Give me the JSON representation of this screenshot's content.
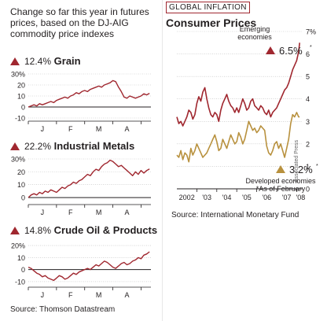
{
  "intro": "Change so far this year in futures prices, based on the DJ-AIG commodity price indexes",
  "left_source": "Source: Thomson Datastream",
  "colors": {
    "accent": "#a0272f",
    "line": "#a0272f",
    "gold": "#b8913e",
    "axis": "#231f20"
  },
  "commodities": [
    {
      "pct": "12.4%",
      "name": "Grain"
    },
    {
      "pct": "22.2%",
      "name": "Industrial Metals"
    },
    {
      "pct": "14.8%",
      "name": "Crude Oil & Products"
    }
  ],
  "right": {
    "tag": "GLOBAL INFLATION",
    "title": "Consumer Prices",
    "source": "Source: International Monetary Fund",
    "emerging_label_1": "Emerging",
    "emerging_label_2": "economies",
    "emerging_value": "6.5%",
    "developed_label": "Developed economies",
    "developed_value": "3.2%",
    "footnote": "*As of February",
    "credit": "Associated Press",
    "star": "*"
  },
  "chart_data": [
    {
      "type": "line",
      "title": "Grain",
      "ytick_labels": [
        "30%",
        "20",
        "10",
        "0",
        "-10"
      ],
      "yticks": [
        30,
        20,
        10,
        0,
        -10
      ],
      "ylim": [
        -10,
        30
      ],
      "xtick_labels": [
        "J",
        "F",
        "M",
        "A"
      ],
      "xlim": [
        0,
        4.35
      ],
      "x": [
        0,
        0.1,
        0.2,
        0.3,
        0.4,
        0.5,
        0.6,
        0.7,
        0.8,
        0.9,
        1.0,
        1.1,
        1.2,
        1.3,
        1.4,
        1.5,
        1.6,
        1.7,
        1.8,
        1.9,
        2.0,
        2.1,
        2.2,
        2.3,
        2.4,
        2.5,
        2.6,
        2.7,
        2.8,
        2.9,
        3.0,
        3.1,
        3.2,
        3.3,
        3.4,
        3.5,
        3.6,
        3.7,
        3.8,
        3.9,
        4.0,
        4.1,
        4.2,
        4.3
      ],
      "series": [
        {
          "values": [
            0,
            1,
            2,
            1,
            3,
            2,
            3,
            4,
            5,
            4,
            6,
            7,
            8,
            9,
            8,
            10,
            11,
            13,
            12,
            14,
            15,
            14,
            16,
            17,
            18,
            19,
            18,
            20,
            21,
            22,
            24,
            23,
            18,
            14,
            9,
            8,
            10,
            9,
            8,
            9,
            10,
            12,
            11,
            12.4
          ]
        }
      ]
    },
    {
      "type": "line",
      "title": "Industrial Metals",
      "ytick_labels": [
        "30%",
        "20",
        "10",
        "0"
      ],
      "yticks": [
        30,
        20,
        10,
        0
      ],
      "ylim": [
        -3,
        30
      ],
      "xtick_labels": [
        "J",
        "F",
        "M",
        "A"
      ],
      "xlim": [
        0,
        4.35
      ],
      "x": [
        0,
        0.1,
        0.2,
        0.3,
        0.4,
        0.5,
        0.6,
        0.7,
        0.8,
        0.9,
        1.0,
        1.1,
        1.2,
        1.3,
        1.4,
        1.5,
        1.6,
        1.7,
        1.8,
        1.9,
        2.0,
        2.1,
        2.2,
        2.3,
        2.4,
        2.5,
        2.6,
        2.7,
        2.8,
        2.9,
        3.0,
        3.1,
        3.2,
        3.3,
        3.4,
        3.5,
        3.6,
        3.7,
        3.8,
        3.9,
        4.0,
        4.1,
        4.2,
        4.3
      ],
      "series": [
        {
          "values": [
            0,
            2,
            3,
            2,
            4,
            3,
            5,
            4,
            6,
            5,
            4,
            6,
            8,
            7,
            9,
            10,
            12,
            11,
            13,
            14,
            16,
            18,
            17,
            20,
            22,
            21,
            24,
            26,
            27,
            29,
            28,
            26,
            24,
            25,
            23,
            21,
            19,
            17,
            20,
            18,
            21,
            19,
            21,
            22.2
          ]
        }
      ]
    },
    {
      "type": "line",
      "title": "Crude Oil & Products",
      "ytick_labels": [
        "20%",
        "10",
        "0",
        "-10"
      ],
      "yticks": [
        20,
        10,
        0,
        -10
      ],
      "ylim": [
        -12,
        22
      ],
      "xtick_labels": [
        "J",
        "F",
        "M",
        "A"
      ],
      "xlim": [
        0,
        4.35
      ],
      "x": [
        0,
        0.1,
        0.2,
        0.3,
        0.4,
        0.5,
        0.6,
        0.7,
        0.8,
        0.9,
        1.0,
        1.1,
        1.2,
        1.3,
        1.4,
        1.5,
        1.6,
        1.7,
        1.8,
        1.9,
        2.0,
        2.1,
        2.2,
        2.3,
        2.4,
        2.5,
        2.6,
        2.7,
        2.8,
        2.9,
        3.0,
        3.1,
        3.2,
        3.3,
        3.4,
        3.5,
        3.6,
        3.7,
        3.8,
        3.9,
        4.0,
        4.1,
        4.2,
        4.3
      ],
      "series": [
        {
          "values": [
            2,
            1,
            -1,
            -3,
            -4,
            -6,
            -5,
            -7,
            -8,
            -9,
            -7,
            -5,
            -6,
            -8,
            -7,
            -5,
            -3,
            -4,
            -2,
            -1,
            0,
            1,
            0,
            2,
            4,
            3,
            5,
            7,
            6,
            4,
            2,
            1,
            3,
            5,
            6,
            4,
            5,
            7,
            8,
            10,
            9,
            12,
            13,
            14.8
          ]
        }
      ]
    },
    {
      "type": "line",
      "title": "Consumer Prices",
      "ytick_labels": [
        "0",
        "1",
        "2",
        "3",
        "4",
        "5",
        "6",
        "7%"
      ],
      "yticks": [
        0,
        1,
        2,
        3,
        4,
        5,
        6,
        7
      ],
      "ylim": [
        0,
        7
      ],
      "xtick_labels": [
        "2002",
        "'03",
        "'04",
        "'05",
        "'06",
        "'07",
        "'08"
      ],
      "xticks": [
        2002.5,
        2003.5,
        2004.5,
        2005.5,
        2006.5,
        2007.5,
        2008.2
      ],
      "xlim": [
        2002,
        2008.3
      ],
      "x": [
        2002.0,
        2002.1,
        2002.2,
        2002.3,
        2002.4,
        2002.5,
        2002.6,
        2002.7,
        2002.8,
        2002.9,
        2003.0,
        2003.1,
        2003.2,
        2003.3,
        2003.4,
        2003.5,
        2003.6,
        2003.7,
        2003.8,
        2003.9,
        2004.0,
        2004.1,
        2004.2,
        2004.3,
        2004.4,
        2004.5,
        2004.6,
        2004.7,
        2004.8,
        2004.9,
        2005.0,
        2005.1,
        2005.2,
        2005.3,
        2005.4,
        2005.5,
        2005.6,
        2005.7,
        2005.8,
        2005.9,
        2006.0,
        2006.1,
        2006.2,
        2006.3,
        2006.4,
        2006.5,
        2006.6,
        2006.7,
        2006.8,
        2006.9,
        2007.0,
        2007.1,
        2007.2,
        2007.3,
        2007.4,
        2007.5,
        2007.6,
        2007.7,
        2007.8,
        2007.9,
        2008.0,
        2008.1,
        2008.15
      ],
      "series": [
        {
          "values": [
            3.2,
            2.9,
            3.0,
            2.8,
            3.0,
            3.2,
            3.5,
            3.4,
            3.1,
            3.3,
            3.8,
            4.1,
            3.9,
            4.3,
            4.5,
            4.0,
            3.6,
            3.3,
            3.2,
            3.4,
            3.3,
            3.0,
            3.5,
            3.8,
            4.0,
            4.2,
            3.9,
            3.7,
            3.6,
            3.4,
            3.6,
            3.4,
            3.7,
            4.0,
            3.8,
            3.5,
            3.6,
            3.9,
            4.0,
            3.7,
            3.6,
            3.5,
            3.7,
            3.6,
            3.4,
            3.3,
            3.5,
            3.2,
            3.4,
            3.5,
            3.6,
            3.8,
            4.0,
            4.2,
            4.4,
            4.5,
            4.7,
            5.0,
            5.3,
            5.5,
            5.7,
            6.1,
            6.5
          ]
        },
        {
          "values": [
            1.5,
            1.4,
            1.7,
            1.3,
            1.6,
            1.5,
            1.2,
            1.8,
            1.5,
            1.7,
            2.0,
            1.8,
            1.6,
            1.4,
            1.5,
            1.6,
            1.8,
            2.0,
            2.2,
            2.4,
            2.1,
            1.7,
            1.8,
            2.2,
            2.0,
            1.8,
            2.1,
            2.4,
            2.2,
            2.0,
            2.1,
            2.5,
            2.3,
            2.0,
            2.2,
            2.6,
            3.0,
            2.8,
            2.6,
            2.7,
            2.5,
            2.6,
            2.8,
            2.7,
            2.6,
            1.9,
            1.6,
            1.5,
            1.7,
            2.0,
            2.1,
            1.8,
            2.0,
            1.7,
            1.4,
            1.8,
            2.2,
            2.9,
            3.3,
            3.2,
            3.4,
            3.2,
            3.2
          ]
        }
      ]
    }
  ]
}
